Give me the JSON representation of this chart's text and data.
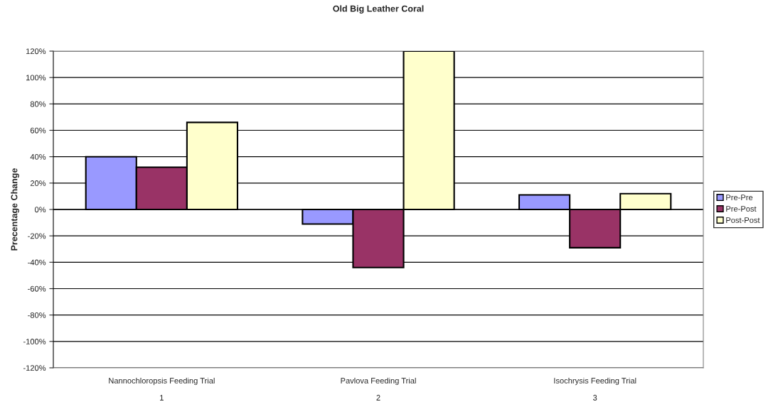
{
  "chart_data": {
    "type": "bar",
    "title": "Old Big Leather Coral",
    "ylabel": "Precentage Change",
    "categories": [
      "Nannochloropsis Feeding Trial\n\n1",
      "Pavlova Feeding Trial\n\n2",
      "Isochrysis Feeding Trial\n\n3"
    ],
    "series": [
      {
        "name": "Pre-Pre",
        "color": "#9999ff",
        "values": [
          40,
          -11,
          11
        ]
      },
      {
        "name": "Pre-Post",
        "color": "#993366",
        "values": [
          32,
          -44,
          -29
        ]
      },
      {
        "name": "Post-Post",
        "color": "#ffffcc",
        "values": [
          66,
          120,
          12
        ]
      }
    ],
    "ylim": [
      -120,
      120
    ],
    "yticks": [
      {
        "value": -120,
        "label": "-120%"
      },
      {
        "value": -100,
        "label": "-100%"
      },
      {
        "value": -80,
        "label": "-80%"
      },
      {
        "value": -60,
        "label": "-60%"
      },
      {
        "value": -40,
        "label": "-40%"
      },
      {
        "value": -20,
        "label": "-20%"
      },
      {
        "value": 0,
        "label": "0%"
      },
      {
        "value": 20,
        "label": "20%"
      },
      {
        "value": 40,
        "label": "40%"
      },
      {
        "value": 60,
        "label": "60%"
      },
      {
        "value": 80,
        "label": "80%"
      },
      {
        "value": 100,
        "label": "100%"
      },
      {
        "value": 120,
        "label": "120%"
      }
    ],
    "grid": "y",
    "legend": "right"
  }
}
